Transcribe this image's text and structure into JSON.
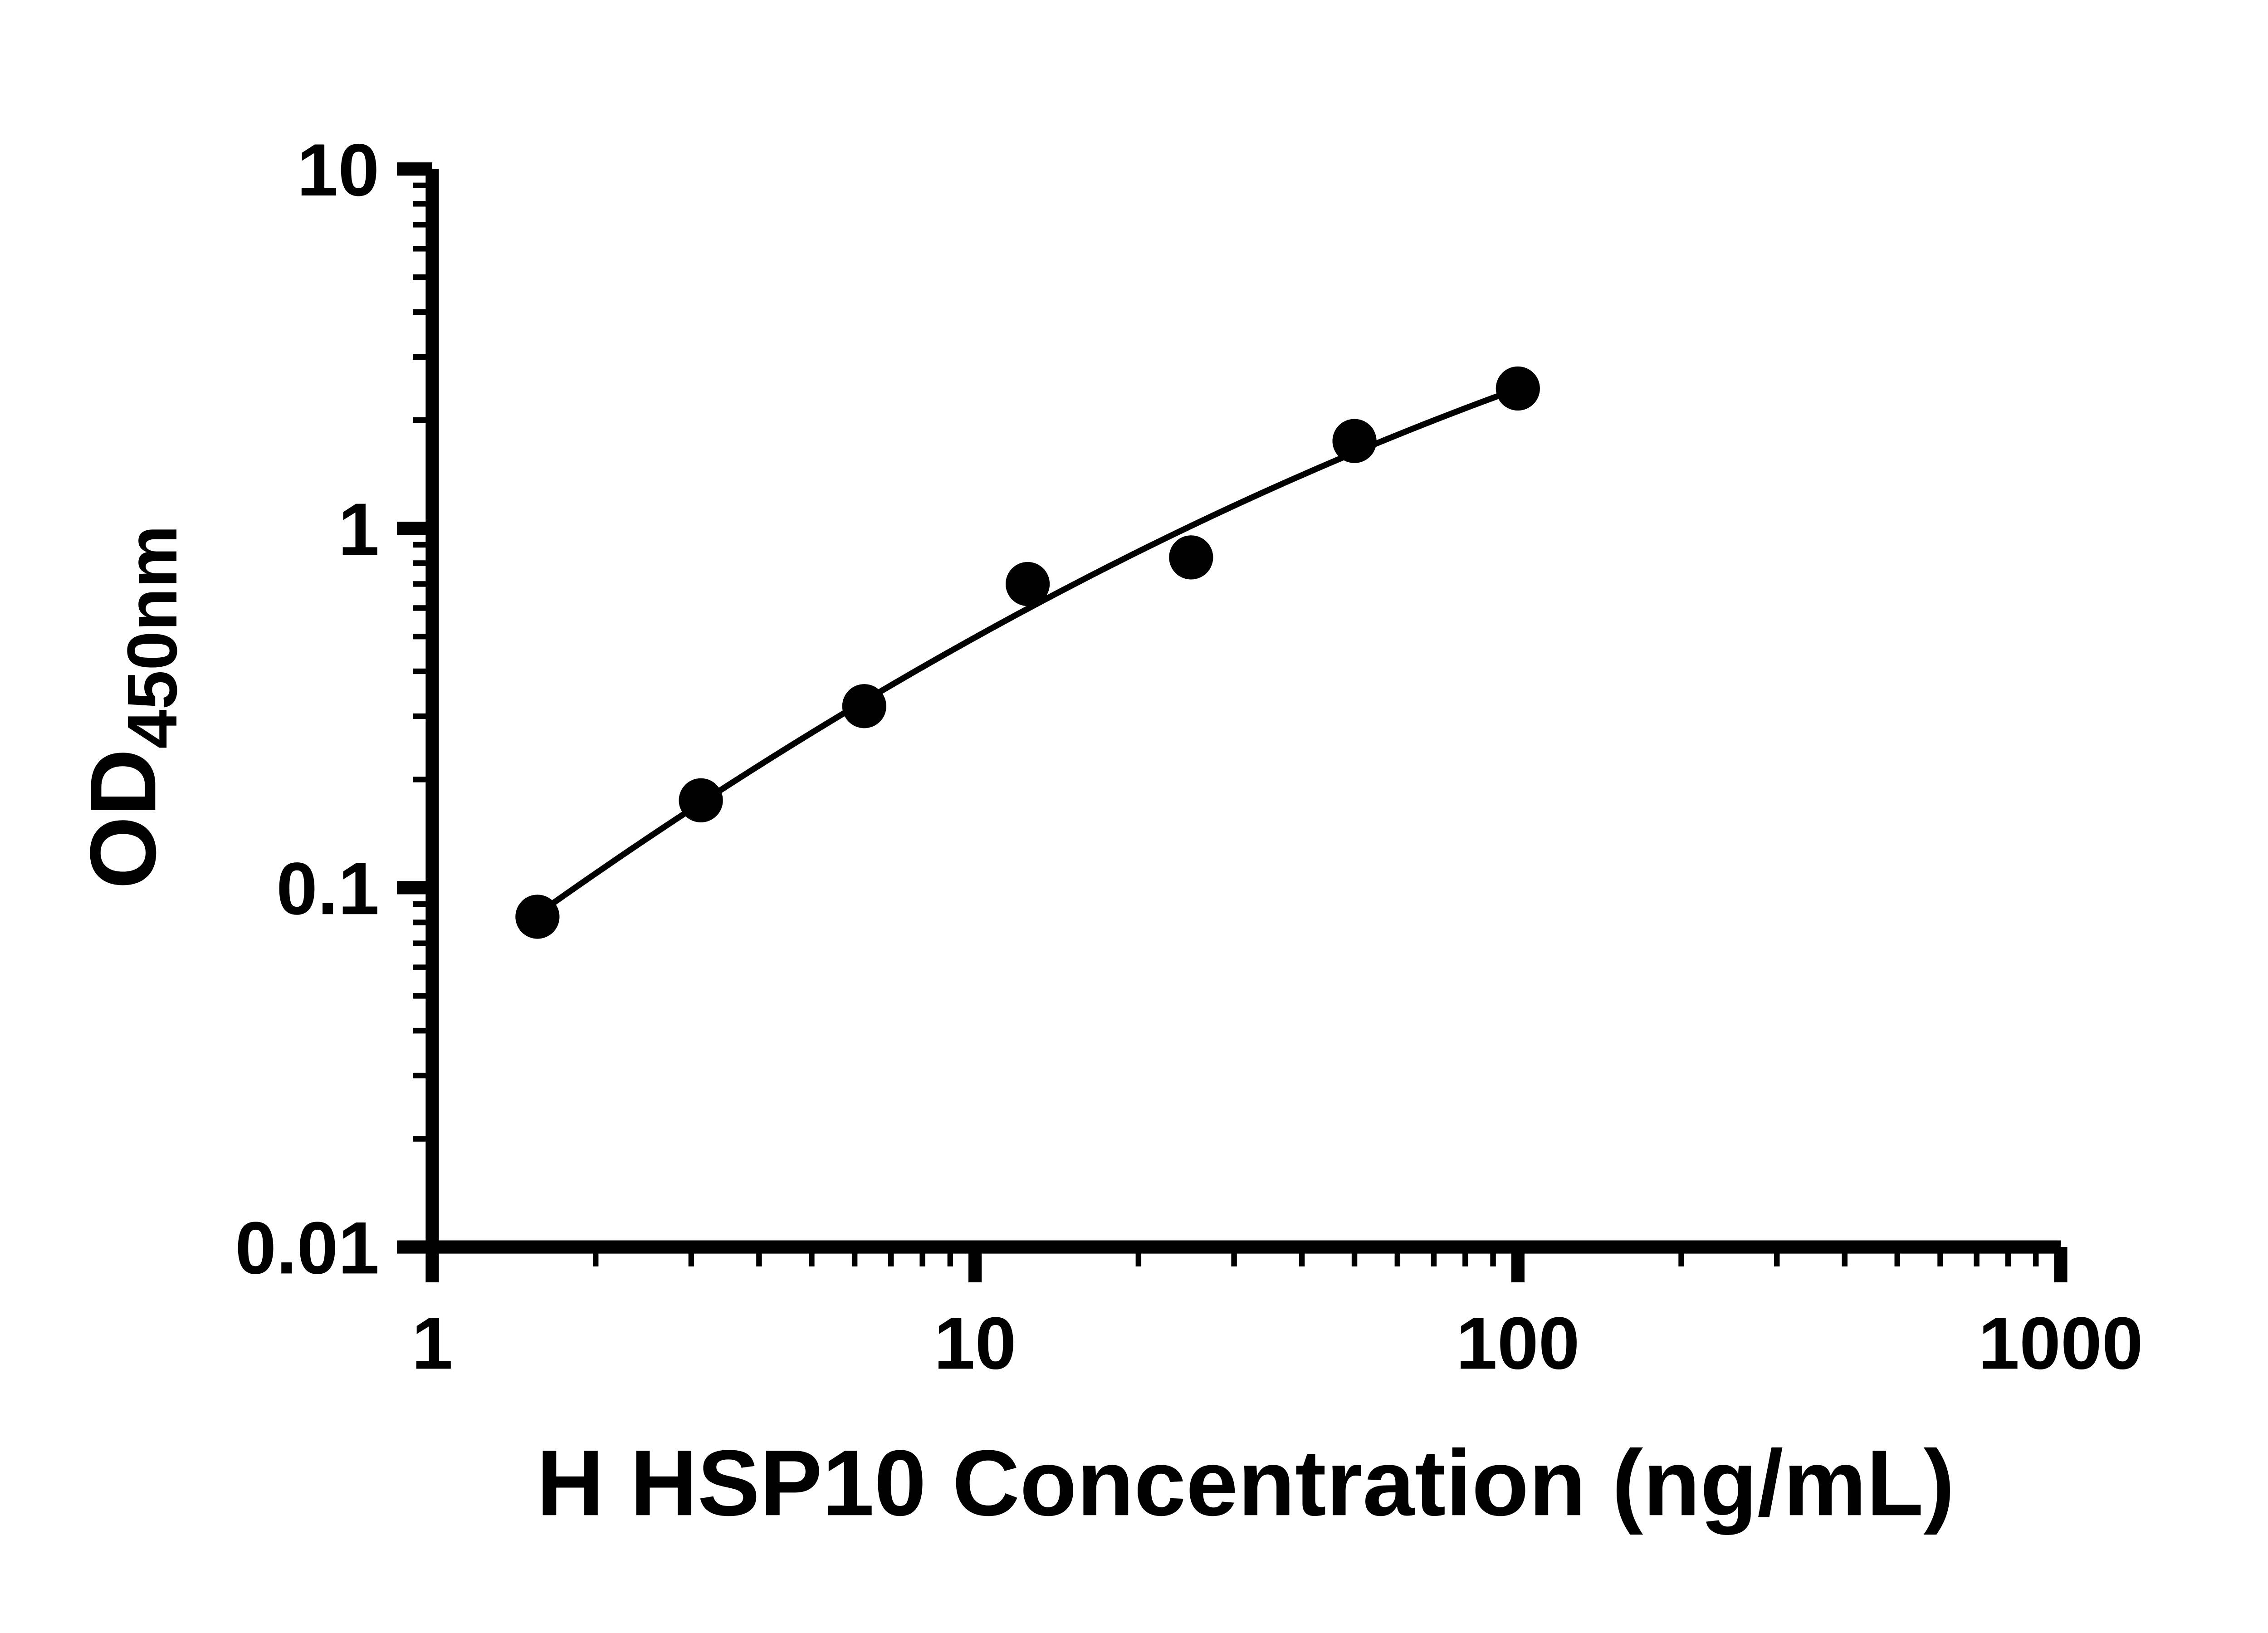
{
  "page": {
    "background": "#ffffff"
  },
  "chart_data": {
    "type": "scatter",
    "subtype": "elisa-standard-curve",
    "title": "",
    "xlabel": "H HSP10 Concentration (ng/mL)",
    "ylabel": "OD450nm",
    "ylabel_base": "OD",
    "ylabel_subscript": "450nm",
    "x_scale": "log10",
    "y_scale": "log10",
    "xlim": [
      1,
      1000
    ],
    "ylim": [
      0.01,
      10
    ],
    "x_ticks": [
      1,
      10,
      100,
      1000
    ],
    "x_tick_labels": [
      "1",
      "10",
      "100",
      "1000"
    ],
    "y_ticks": [
      0.01,
      0.1,
      1,
      10
    ],
    "y_tick_labels": [
      "0.01",
      "0.1",
      "1",
      "10"
    ],
    "minor_ticks": "log-decade-marks-2-through-9",
    "grid": false,
    "legend": null,
    "axis_color": "#000000",
    "line_color": "#000000",
    "marker": {
      "shape": "circle",
      "color": "#000000",
      "radius": 12.5
    },
    "points": [
      {
        "x": 1.5625,
        "y": 0.083
      },
      {
        "x": 3.125,
        "y": 0.175
      },
      {
        "x": 6.25,
        "y": 0.32
      },
      {
        "x": 12.5,
        "y": 0.7
      },
      {
        "x": 25,
        "y": 0.83
      },
      {
        "x": 50,
        "y": 1.75
      },
      {
        "x": 100,
        "y": 2.45
      }
    ],
    "fit_curve": {
      "model": "quadratic-in-loglog",
      "p": -0.22379,
      "q": 0.8096,
      "r": -0.14581,
      "u_center": 1.0969,
      "u_range": [
        0.1938,
        2.0
      ]
    }
  }
}
